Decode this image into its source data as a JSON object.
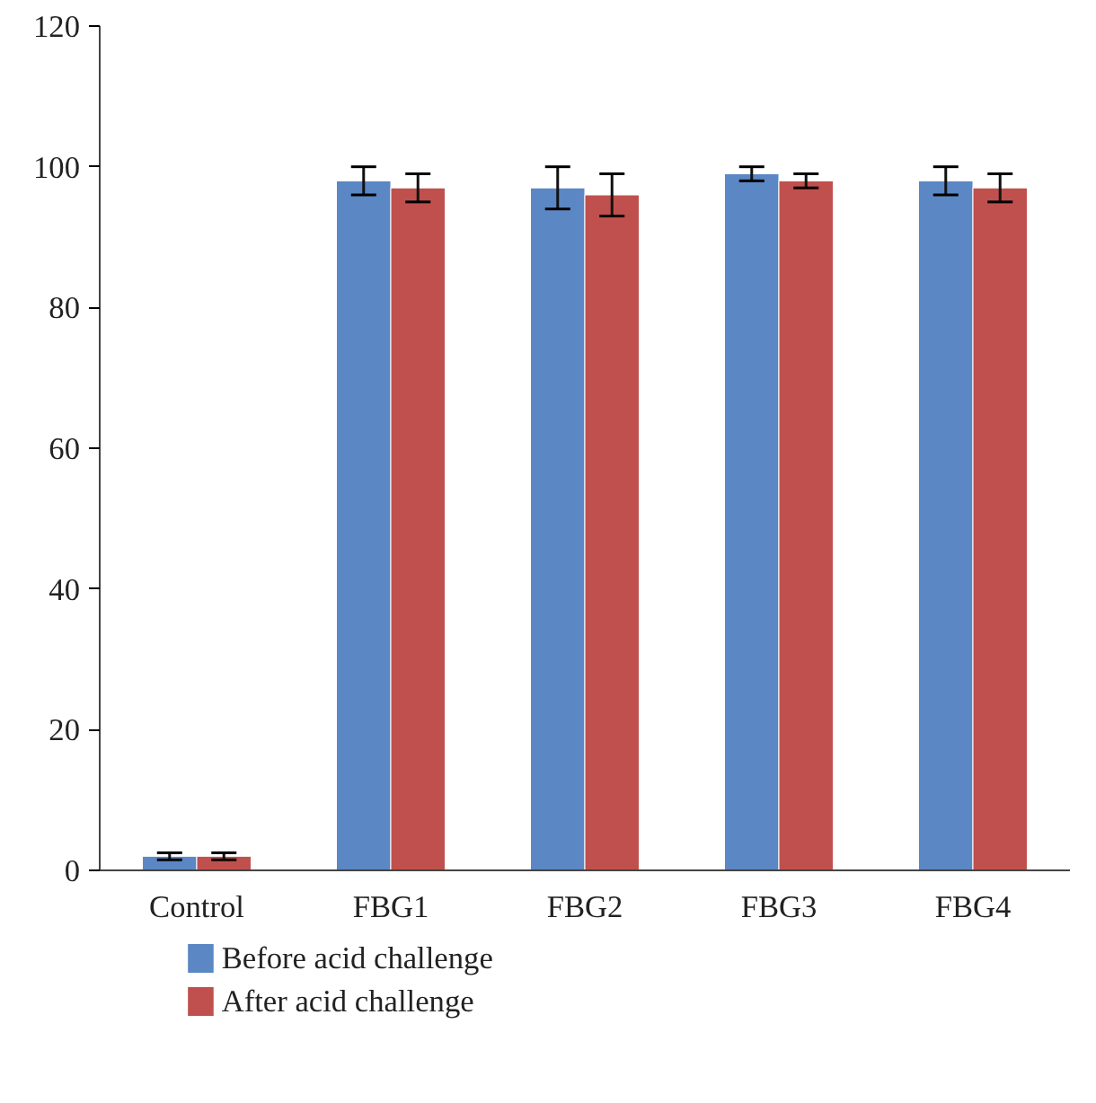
{
  "chart_data": {
    "type": "bar",
    "categories": [
      "Control",
      "FBG1",
      "FBG2",
      "FBG3",
      "FBG4"
    ],
    "series": [
      {
        "name": "Before acid challenge",
        "color": "#5b87c4",
        "values": [
          2,
          98,
          97,
          99,
          98
        ],
        "errors": [
          0.5,
          2,
          3,
          1,
          2
        ]
      },
      {
        "name": "After acid challenge",
        "color": "#c0504d",
        "values": [
          2,
          97,
          96,
          98,
          97
        ],
        "errors": [
          0.5,
          2,
          3,
          1,
          2
        ]
      }
    ],
    "ylim": [
      0,
      120
    ],
    "yticks": [
      0,
      20,
      40,
      60,
      80,
      100,
      120
    ],
    "grid": false,
    "legend": "bottom"
  }
}
